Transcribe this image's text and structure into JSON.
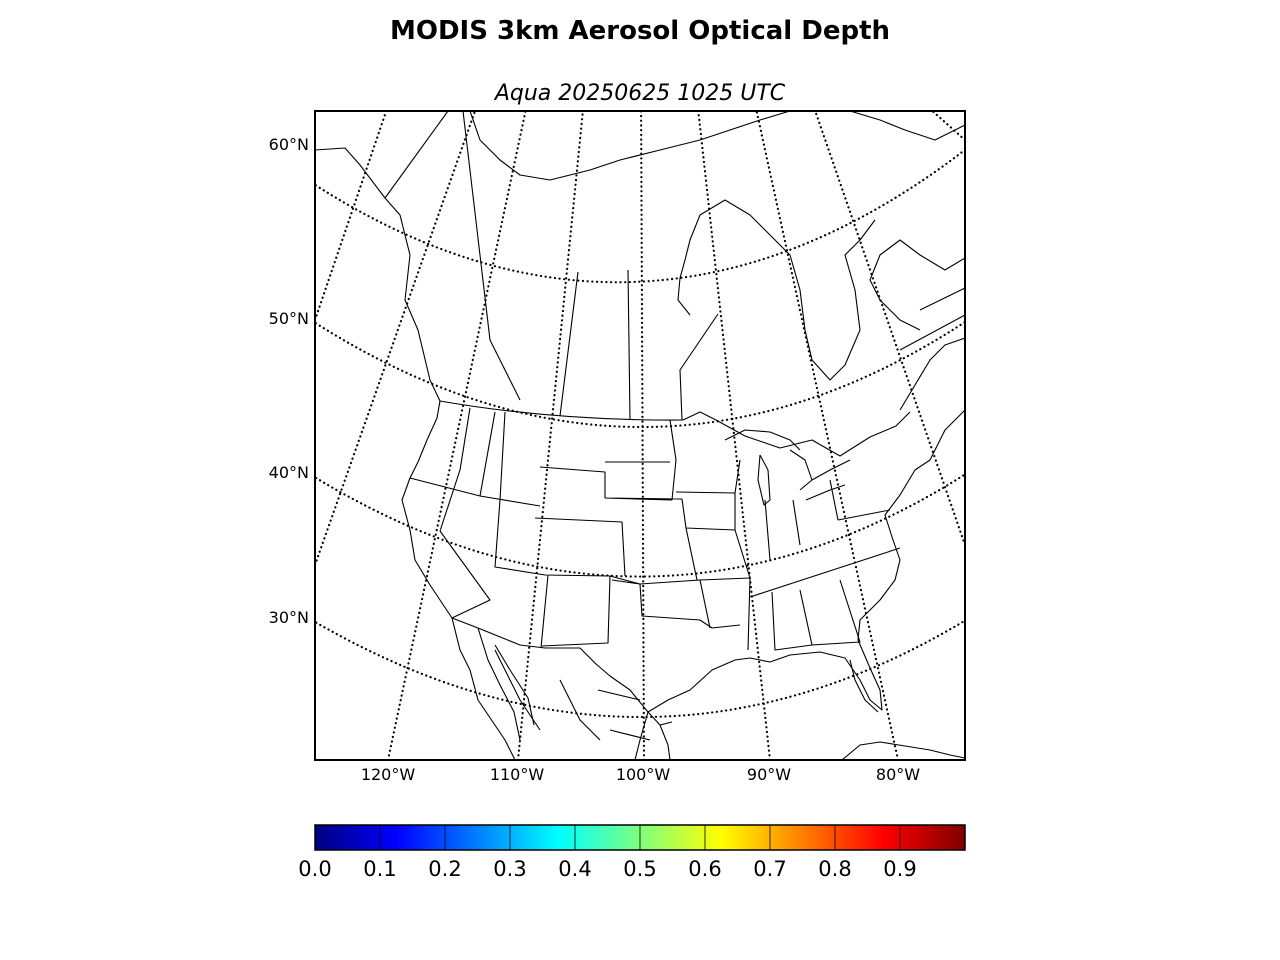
{
  "figure": {
    "title": "MODIS 3km Aerosol Optical Depth",
    "subtitle": "Aqua 20250625 1025 UTC"
  },
  "map": {
    "projection": "lambert-conformal",
    "region": "North America",
    "latitude_labels": [
      "60°N",
      "50°N",
      "40°N",
      "30°N"
    ],
    "longitude_labels": [
      "120°W",
      "110°W",
      "100°W",
      "90°W",
      "80°W"
    ],
    "graticule_style": "dotted",
    "overlays": [
      "coastlines",
      "country-borders",
      "state-province-borders"
    ],
    "background_color": "#ffffff",
    "data_shown": "none"
  },
  "colorbar": {
    "colormap": "jet",
    "range": [
      0.0,
      1.0
    ],
    "tick_labels": [
      "0.0",
      "0.1",
      "0.2",
      "0.3",
      "0.4",
      "0.5",
      "0.6",
      "0.7",
      "0.8",
      "0.9"
    ],
    "colors": [
      "#00007f",
      "#0000ff",
      "#007fff",
      "#00ffff",
      "#7fff7f",
      "#ffff00",
      "#ff7f00",
      "#ff0000",
      "#7f0000"
    ]
  }
}
